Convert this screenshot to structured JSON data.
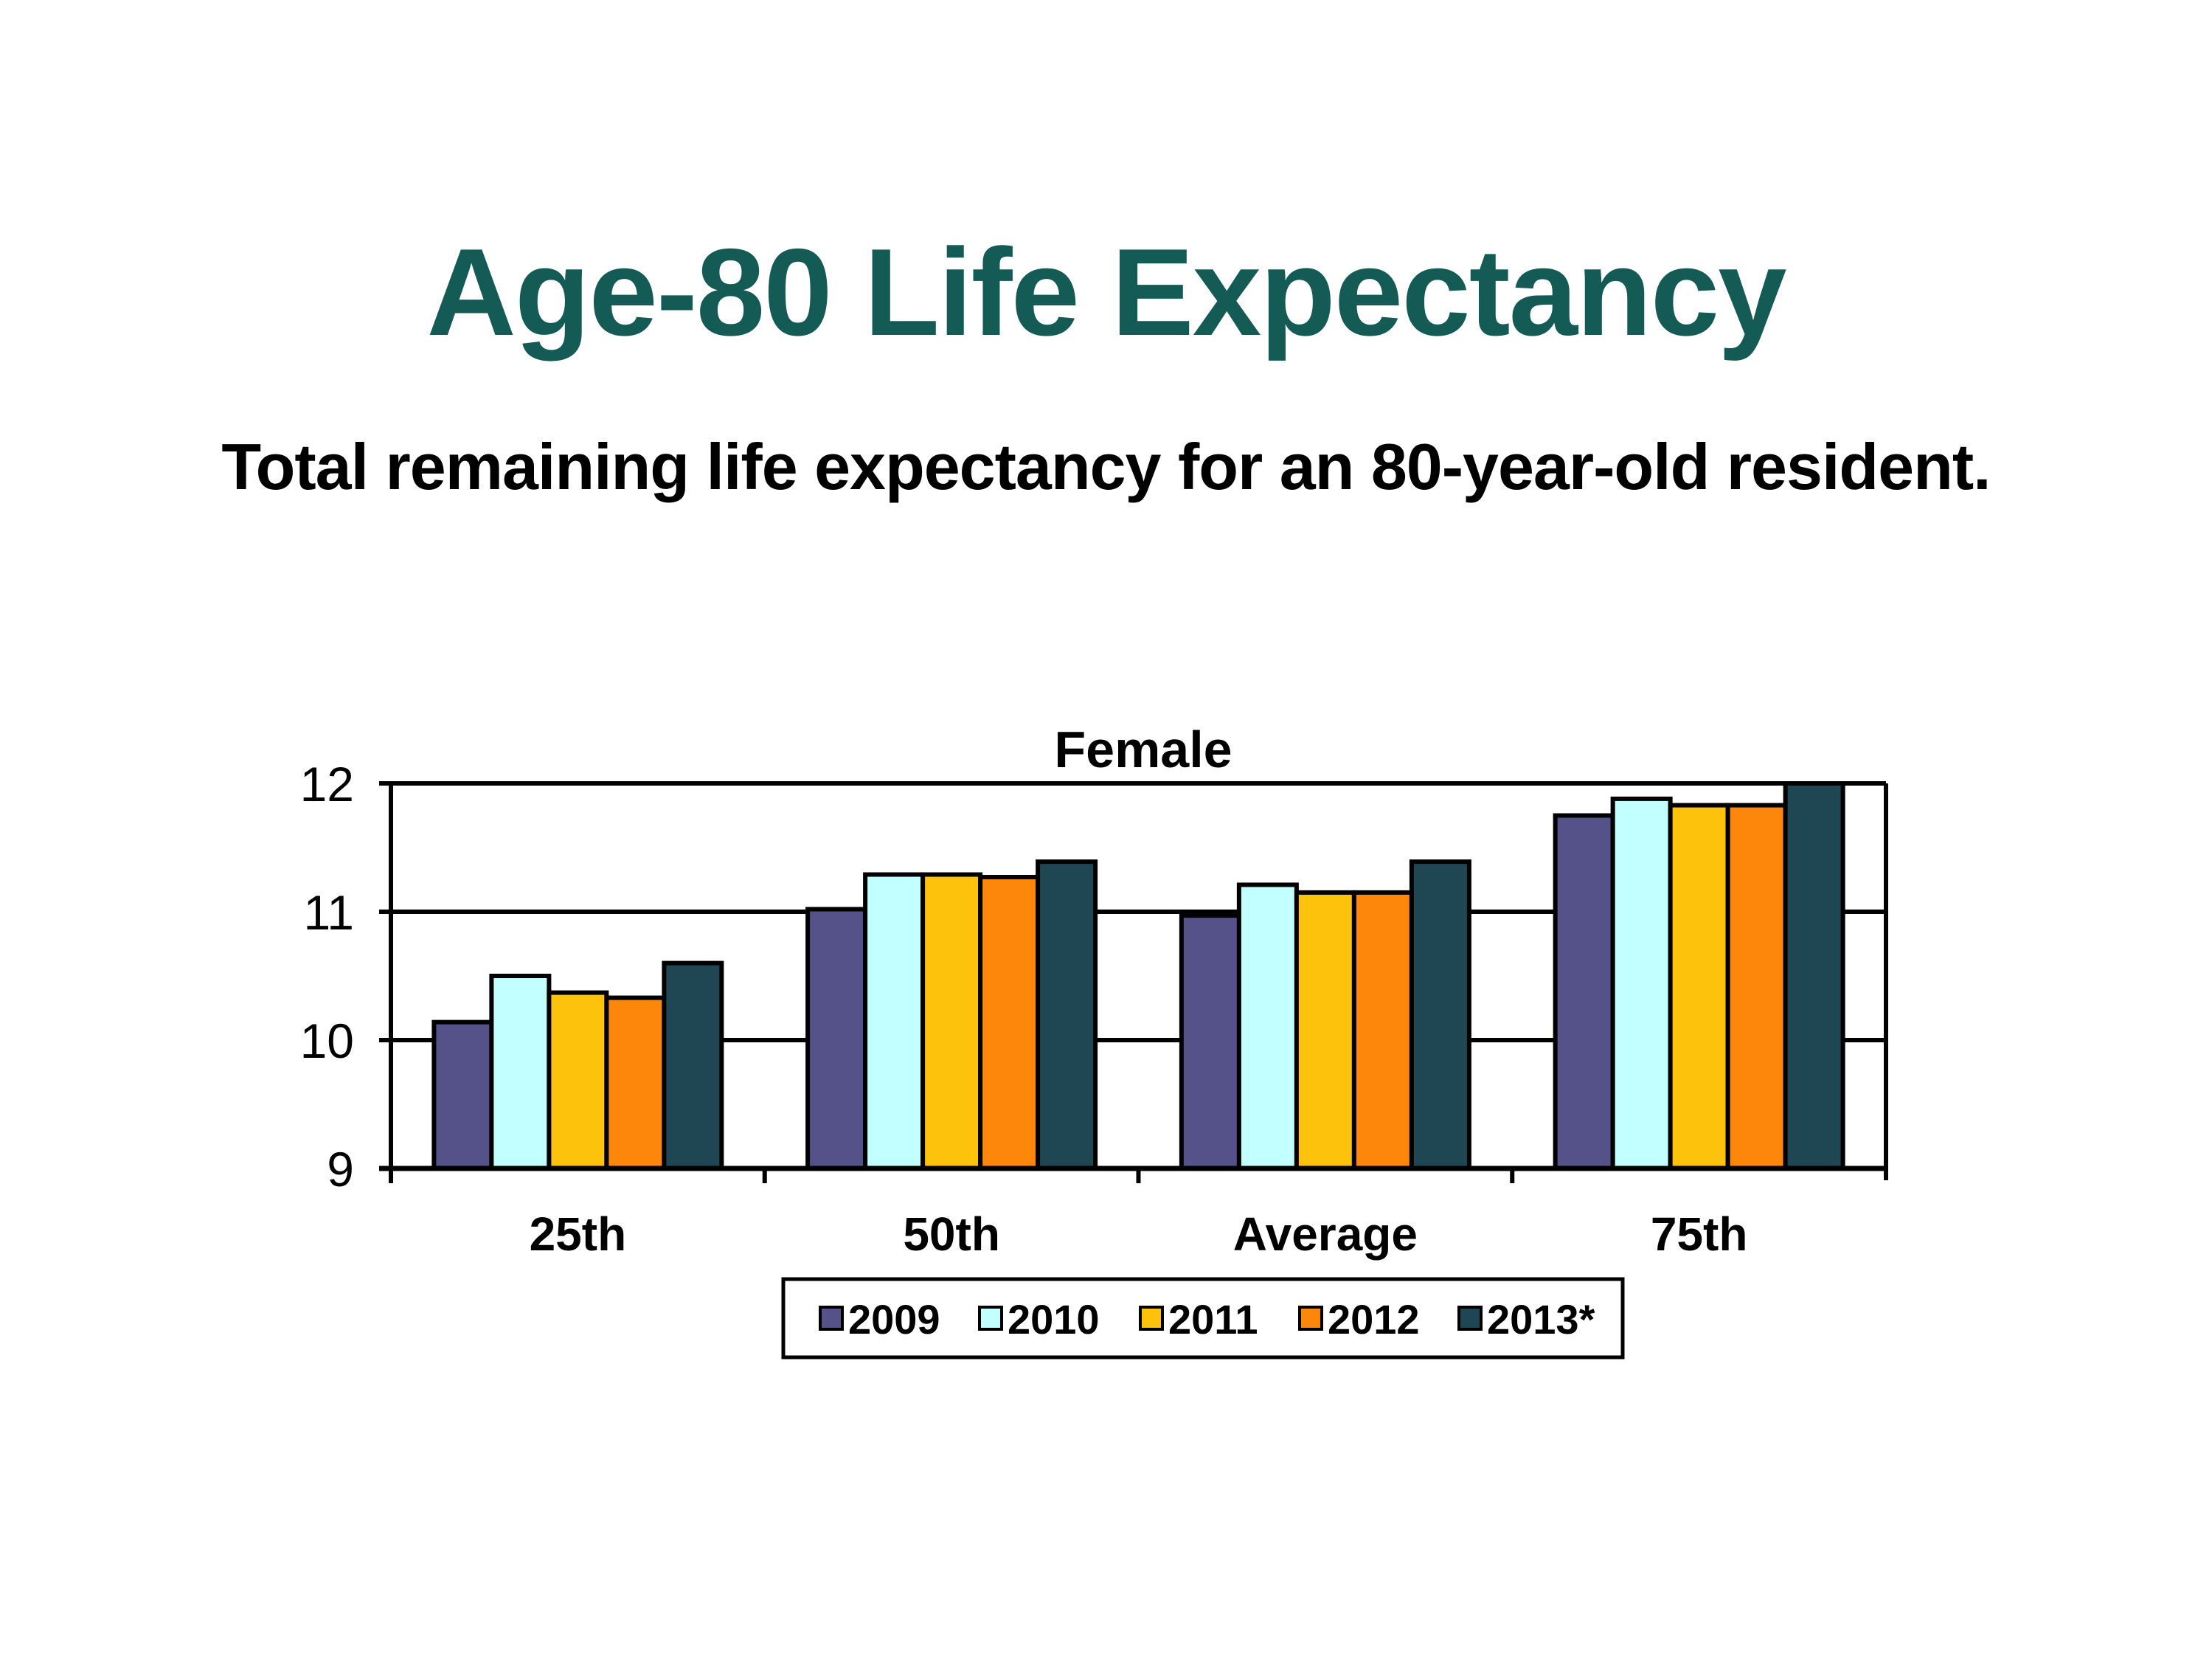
{
  "title": "Age-80 Life Expectancy",
  "subtitle": "Total remaining life expectancy for an 80-year-old resident.",
  "chart_data": {
    "type": "bar",
    "title": "Female",
    "xlabel": "",
    "ylabel": "",
    "ylim": [
      9,
      12
    ],
    "yticks": [
      9,
      10,
      11,
      12
    ],
    "grid": true,
    "legend_position": "bottom",
    "categories": [
      "25th",
      "50th",
      "Average",
      "75th"
    ],
    "series": [
      {
        "name": "2009",
        "color": "#55528a",
        "values": [
          10.14,
          11.02,
          10.97,
          11.75
        ]
      },
      {
        "name": "2010",
        "color": "#c2ffff",
        "values": [
          10.5,
          11.29,
          11.21,
          11.88
        ]
      },
      {
        "name": "2011",
        "color": "#fdc20b",
        "values": [
          10.37,
          11.29,
          11.15,
          11.83
        ]
      },
      {
        "name": "2012",
        "color": "#fd870b",
        "values": [
          10.33,
          11.27,
          11.15,
          11.83
        ]
      },
      {
        "name": "2013*",
        "color": "#1e4653",
        "values": [
          10.6,
          11.39,
          11.39,
          12.0
        ]
      }
    ]
  }
}
